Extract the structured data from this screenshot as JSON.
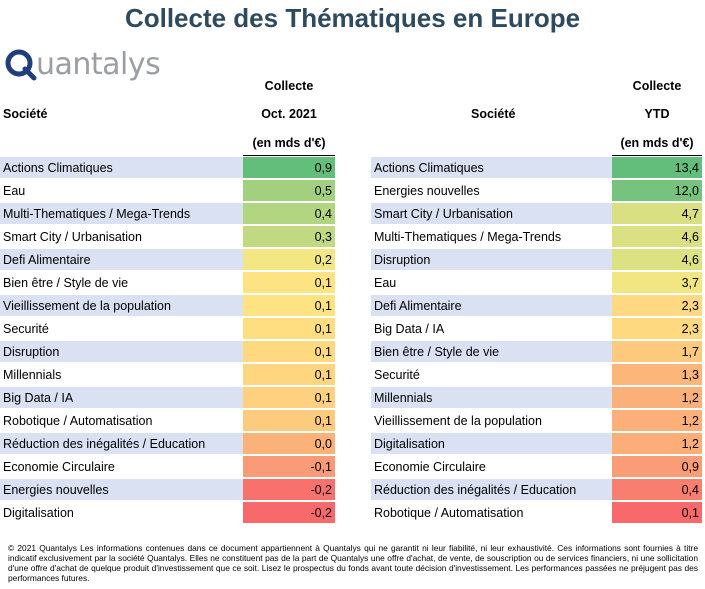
{
  "title": "Collecte des Thématiques en Europe",
  "logo": {
    "text": "uantalys",
    "letter": "Q"
  },
  "left": {
    "societe_label": "Société",
    "col_line1": "Collecte",
    "col_line2": "Oct. 2021",
    "col_line3": "(en mds d'€)",
    "rows": [
      {
        "name": "Actions Climatiques",
        "value": "0,9",
        "color": "#63be7b"
      },
      {
        "name": "Eau",
        "value": "0,5",
        "color": "#a2d07f"
      },
      {
        "name": "Multi-Thematiques / Mega-Trends",
        "value": "0,4",
        "color": "#b1d580"
      },
      {
        "name": "Smart City / Urbanisation",
        "value": "0,3",
        "color": "#c1da81"
      },
      {
        "name": "Defi Alimentaire",
        "value": "0,2",
        "color": "#f2e783"
      },
      {
        "name": "Bien être / Style de vie",
        "value": "0,1",
        "color": "#fee382"
      },
      {
        "name": "Vieillissement de la population",
        "value": "0,1",
        "color": "#fee382"
      },
      {
        "name": "Securité",
        "value": "0,1",
        "color": "#fede81"
      },
      {
        "name": "Disruption",
        "value": "0,1",
        "color": "#fed980"
      },
      {
        "name": "Millennials",
        "value": "0,1",
        "color": "#fed680"
      },
      {
        "name": "Big Data / IA",
        "value": "0,1",
        "color": "#fdd17f"
      },
      {
        "name": "Robotique / Automatisation",
        "value": "0,1",
        "color": "#fdcb7d"
      },
      {
        "name": "Réduction des inégalités / Education",
        "value": "0,0",
        "color": "#fbb279"
      },
      {
        "name": "Economie Circulaire",
        "value": "-0,1",
        "color": "#f99b76"
      },
      {
        "name": "Energies nouvelles",
        "value": "-0,2",
        "color": "#f8716d"
      },
      {
        "name": "Digitalisation",
        "value": "-0,2",
        "color": "#f8696b"
      }
    ]
  },
  "right": {
    "societe_label": "Société",
    "col_line1": "Collecte",
    "col_line2": "YTD",
    "col_line3": "(en mds d'€)",
    "rows": [
      {
        "name": "Actions Climatiques",
        "value": "13,4",
        "color": "#63be7b"
      },
      {
        "name": "Energies nouvelles",
        "value": "12,0",
        "color": "#75c37c"
      },
      {
        "name": "Smart City / Urbanisation",
        "value": "4,7",
        "color": "#d9e082"
      },
      {
        "name": "Multi-Thematiques / Mega-Trends",
        "value": "4,6",
        "color": "#dbe182"
      },
      {
        "name": "Disruption",
        "value": "4,6",
        "color": "#dce182"
      },
      {
        "name": "Eau",
        "value": "3,7",
        "color": "#f2e683"
      },
      {
        "name": "Defi Alimentaire",
        "value": "2,3",
        "color": "#fed981"
      },
      {
        "name": "Big Data / IA",
        "value": "2,3",
        "color": "#fed980"
      },
      {
        "name": "Bien être / Style de vie",
        "value": "1,7",
        "color": "#fdc97d"
      },
      {
        "name": "Securité",
        "value": "1,3",
        "color": "#fcb67a"
      },
      {
        "name": "Millennials",
        "value": "1,2",
        "color": "#fcb079"
      },
      {
        "name": "Vieillissement de la population",
        "value": "1,2",
        "color": "#fcaf79"
      },
      {
        "name": "Digitalisation",
        "value": "1,2",
        "color": "#fcad78"
      },
      {
        "name": "Economie Circulaire",
        "value": "0,9",
        "color": "#fa9c75"
      },
      {
        "name": "Réduction des inégalités / Education",
        "value": "0,4",
        "color": "#f87f70"
      },
      {
        "name": "Robotique / Automatisation",
        "value": "0,1",
        "color": "#f8696b"
      }
    ]
  },
  "footer": "© 2021 Quantalys Les informations contenues dans ce document appartiennent à Quantalys qui ne garantit ni leur fiabilité, ni leur exhaustivité. Ces informations sont fournies à titre indicatif exclusivement par la société Quantalys. Elles ne constituent pas de la part de Quantalys une offre d'achat, de vente, de souscription ou de services financiers, ni une sollicitation d'une offre d'achat de quelque produit d'investissement que ce soit. Lisez le prospectus du fonds avant toute décision d'investissement. Les performances passées ne préjugent pas des performances futures."
}
